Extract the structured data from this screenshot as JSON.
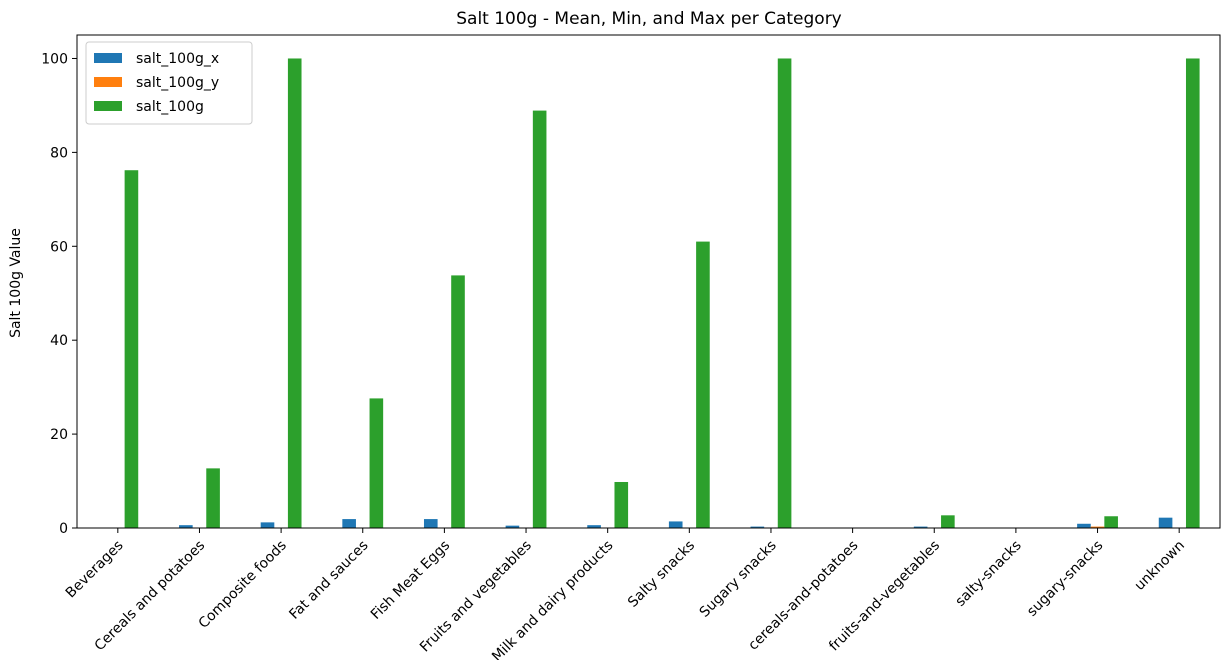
{
  "chart_data": {
    "type": "bar",
    "title": "Salt 100g - Mean, Min, and Max per Category",
    "xlabel": "",
    "ylabel": "Salt 100g Value",
    "ylim": [
      0,
      105
    ],
    "yticks": [
      0,
      20,
      40,
      60,
      80,
      100
    ],
    "grid": false,
    "legend_position": "top-left",
    "categories": [
      "Beverages",
      "Cereals and potatoes",
      "Composite foods",
      "Fat and sauces",
      "Fish Meat Eggs",
      "Fruits and vegetables",
      "Milk and dairy products",
      "Salty snacks",
      "Sugary snacks",
      "cereals-and-potatoes",
      "fruits-and-vegetables",
      "salty-snacks",
      "sugary-snacks",
      "unknown"
    ],
    "series": [
      {
        "name": "salt_100g_x",
        "color": "#1f77b4",
        "values": [
          0.1,
          0.6,
          1.2,
          1.9,
          1.9,
          0.5,
          0.6,
          1.4,
          0.3,
          0.0,
          0.3,
          0.0,
          0.9,
          2.2
        ]
      },
      {
        "name": "salt_100g_y",
        "color": "#ff7f0e",
        "values": [
          0.0,
          0.0,
          0.0,
          0.0,
          0.0,
          0.0,
          0.0,
          0.0,
          0.0,
          0.0,
          0.0,
          0.0,
          0.3,
          0.0
        ]
      },
      {
        "name": "salt_100g",
        "color": "#2ca02c",
        "values": [
          76.2,
          12.7,
          100.0,
          27.6,
          53.8,
          88.9,
          9.8,
          61.0,
          100.0,
          0.0,
          2.7,
          0.0,
          2.5,
          100.0
        ]
      }
    ]
  }
}
